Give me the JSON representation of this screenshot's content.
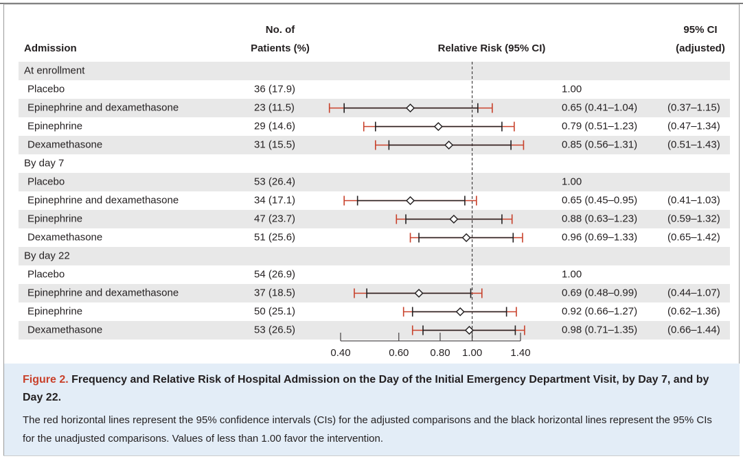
{
  "chart_data": {
    "type": "forest",
    "log": true,
    "columns": {
      "label": "Admission",
      "patients": [
        "No. of",
        "Patients (%)"
      ],
      "plot": "Relative Risk (95% CI)",
      "adjusted": [
        "95% CI",
        "(adjusted)"
      ]
    },
    "xlim": [
      0.4,
      1.4
    ],
    "xticks": [
      {
        "value": 0.4,
        "label": "0.40"
      },
      {
        "value": 0.6,
        "label": "0.60"
      },
      {
        "value": 0.8,
        "label": "0.80"
      },
      {
        "value": 1.0,
        "label": "1.00"
      },
      {
        "value": 1.4,
        "label": "1.40"
      }
    ],
    "reference": 1.0,
    "ci_color": "#231f20",
    "adj_color": "#c8402a",
    "groups": [
      {
        "label": "At enrollment",
        "rows": [
          {
            "label": "Placebo",
            "patients": "36 (17.9)",
            "rr_label": "1.00"
          },
          {
            "label": "Epinephrine and dexamethasone",
            "patients": "23 (11.5)",
            "rr": 0.65,
            "ci_low": 0.41,
            "ci_high": 1.04,
            "adj_low": 0.37,
            "adj_high": 1.15,
            "rr_label": "0.65 (0.41–1.04)",
            "adj_label": "(0.37–1.15)"
          },
          {
            "label": "Epinephrine",
            "patients": "29 (14.6)",
            "rr": 0.79,
            "ci_low": 0.51,
            "ci_high": 1.23,
            "adj_low": 0.47,
            "adj_high": 1.34,
            "rr_label": "0.79 (0.51–1.23)",
            "adj_label": "(0.47–1.34)"
          },
          {
            "label": "Dexamethasone",
            "patients": "31 (15.5)",
            "rr": 0.85,
            "ci_low": 0.56,
            "ci_high": 1.31,
            "adj_low": 0.51,
            "adj_high": 1.43,
            "rr_label": "0.85 (0.56–1.31)",
            "adj_label": "(0.51–1.43)"
          }
        ]
      },
      {
        "label": "By day 7",
        "rows": [
          {
            "label": "Placebo",
            "patients": "53 (26.4)",
            "rr_label": "1.00"
          },
          {
            "label": "Epinephrine and dexamethasone",
            "patients": "34 (17.1)",
            "rr": 0.65,
            "ci_low": 0.45,
            "ci_high": 0.95,
            "adj_low": 0.41,
            "adj_high": 1.03,
            "rr_label": "0.65 (0.45–0.95)",
            "adj_label": "(0.41–1.03)"
          },
          {
            "label": "Epinephrine",
            "patients": "47 (23.7)",
            "rr": 0.88,
            "ci_low": 0.63,
            "ci_high": 1.23,
            "adj_low": 0.59,
            "adj_high": 1.32,
            "rr_label": "0.88 (0.63–1.23)",
            "adj_label": "(0.59–1.32)"
          },
          {
            "label": "Dexamethasone",
            "patients": "51 (25.6)",
            "rr": 0.96,
            "ci_low": 0.69,
            "ci_high": 1.33,
            "adj_low": 0.65,
            "adj_high": 1.42,
            "rr_label": "0.96 (0.69–1.33)",
            "adj_label": "(0.65–1.42)"
          }
        ]
      },
      {
        "label": "By day 22",
        "rows": [
          {
            "label": "Placebo",
            "patients": "54 (26.9)",
            "rr_label": "1.00"
          },
          {
            "label": "Epinephrine and dexamethasone",
            "patients": "37 (18.5)",
            "rr": 0.69,
            "ci_low": 0.48,
            "ci_high": 0.99,
            "adj_low": 0.44,
            "adj_high": 1.07,
            "rr_label": "0.69 (0.48–0.99)",
            "adj_label": "(0.44–1.07)"
          },
          {
            "label": "Epinephrine",
            "patients": "50 (25.1)",
            "rr": 0.92,
            "ci_low": 0.66,
            "ci_high": 1.27,
            "adj_low": 0.62,
            "adj_high": 1.36,
            "rr_label": "0.92 (0.66–1.27)",
            "adj_label": "(0.62–1.36)"
          },
          {
            "label": "Dexamethasone",
            "patients": "53 (26.5)",
            "rr": 0.98,
            "ci_low": 0.71,
            "ci_high": 1.35,
            "adj_low": 0.66,
            "adj_high": 1.44,
            "rr_label": "0.98 (0.71–1.35)",
            "adj_label": "(0.66–1.44)"
          }
        ]
      }
    ],
    "caption": {
      "figure": "Figure 2.",
      "title": "Frequency and Relative Risk of Hospital Admission on the Day of the Initial Emergency Department Visit, by Day 7, and by Day 22.",
      "text": "The red horizontal lines represent the 95% confidence intervals (CIs) for the adjusted comparisons and the black horizontal lines represent the 95% CIs for the unadjusted comparisons. Values of less than 1.00 favor the intervention."
    }
  }
}
